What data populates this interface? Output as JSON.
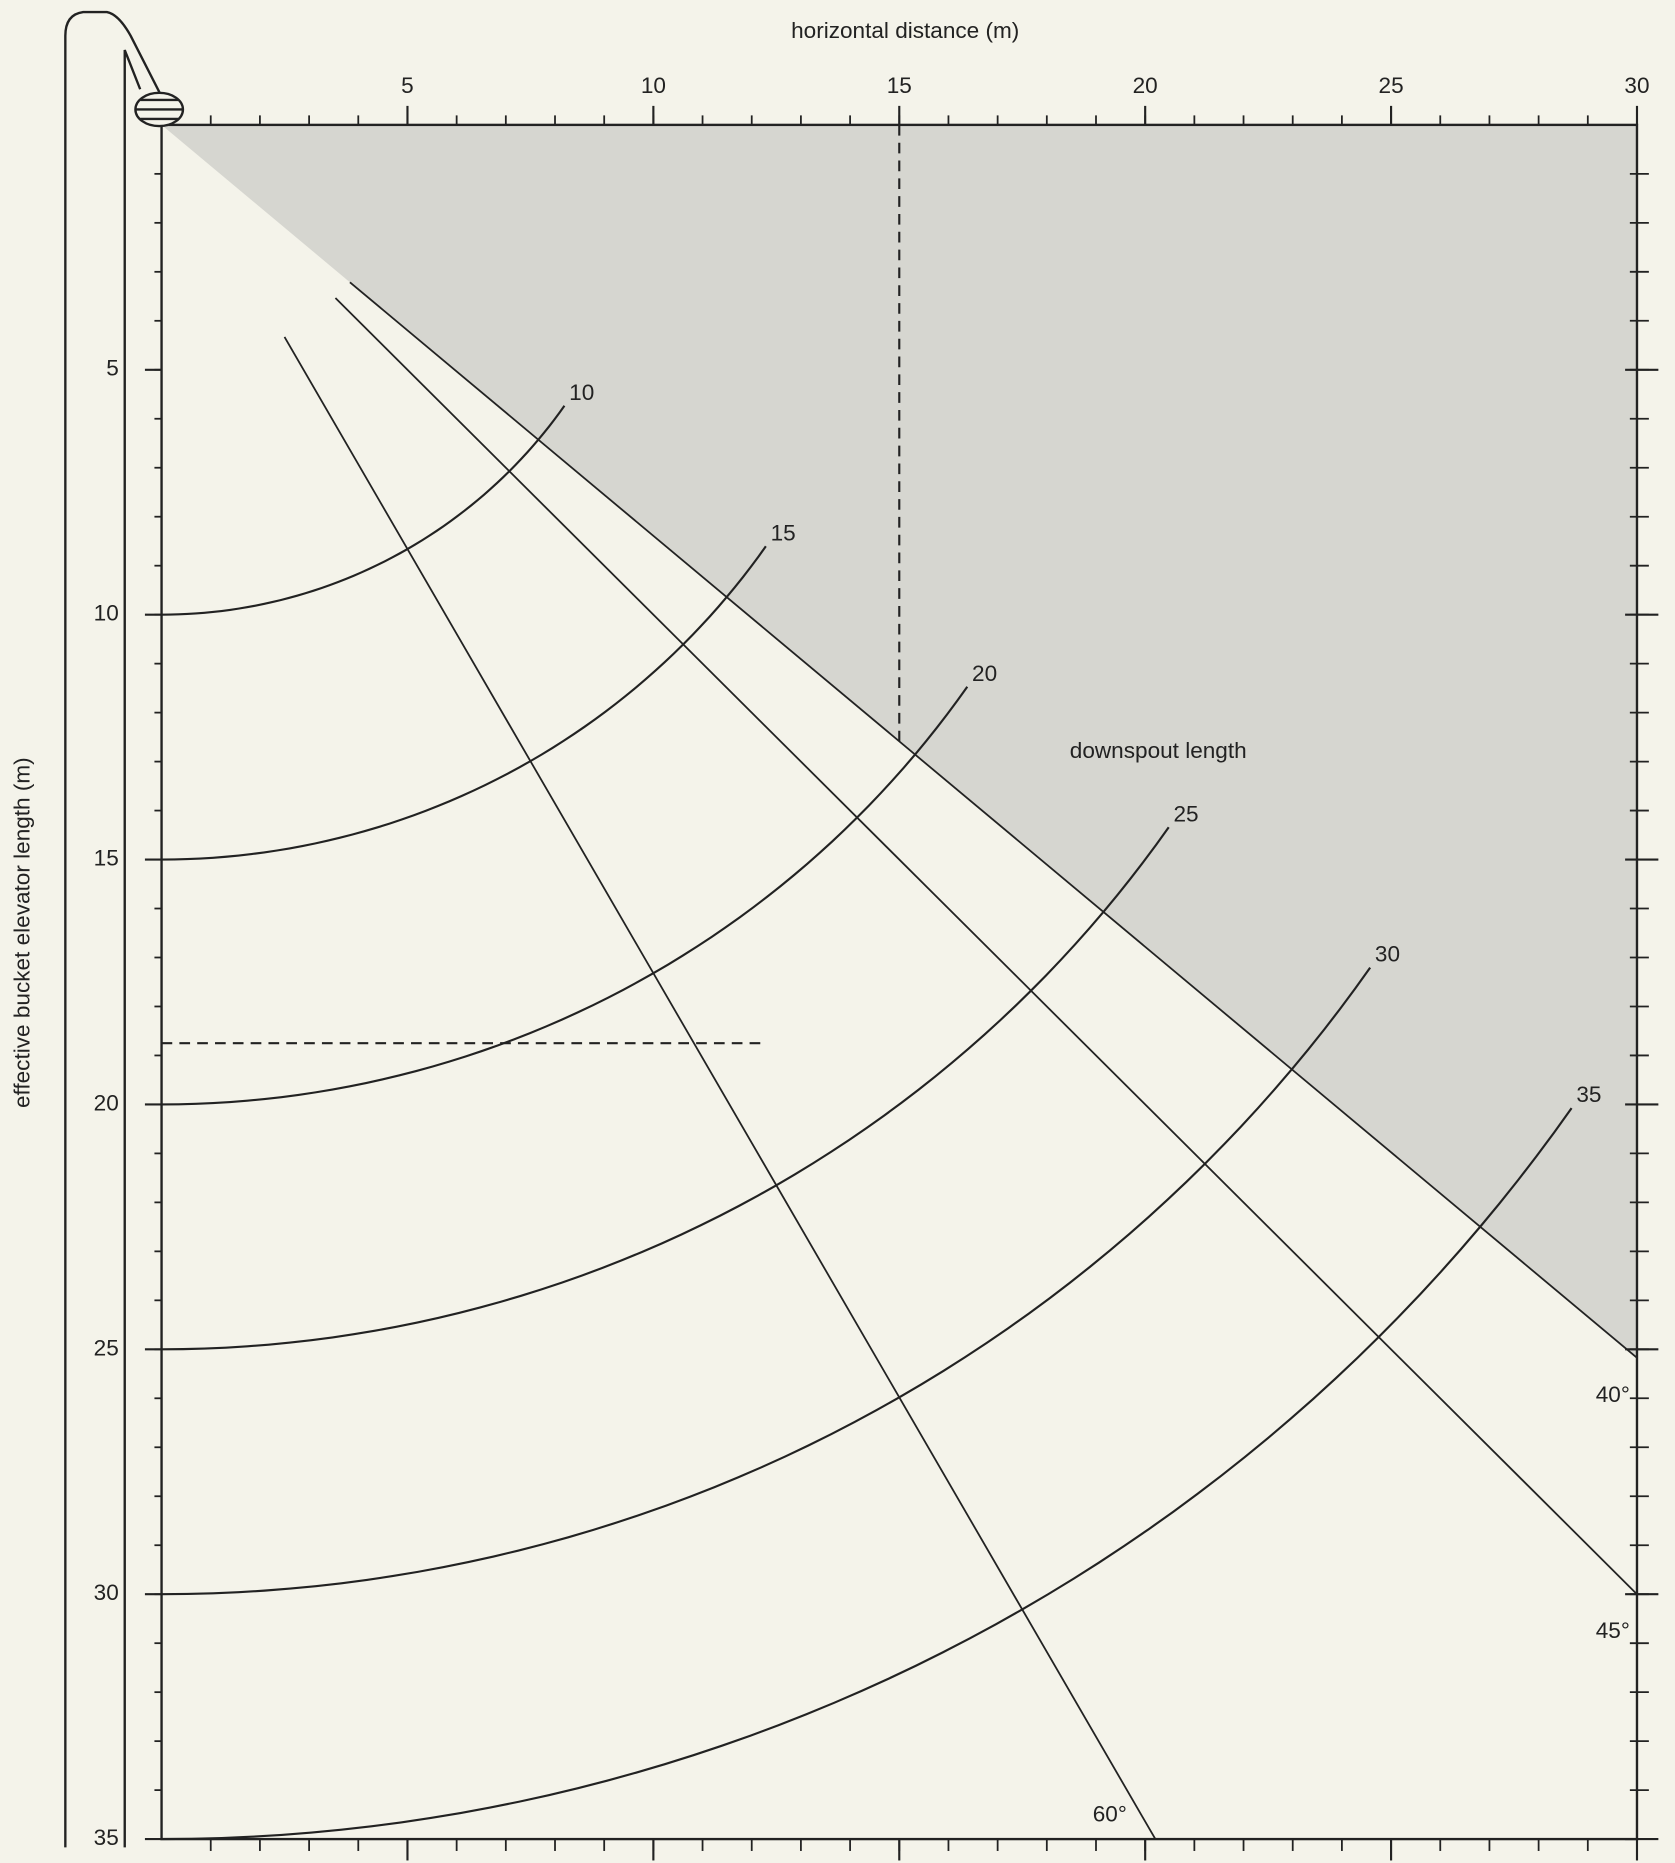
{
  "chart_data": {
    "type": "nomograph",
    "xlabel": "horizontal distance (m)",
    "ylabel": "effective bucket elevator length (m)",
    "annotation": "downspout length",
    "xlim": [
      0,
      30
    ],
    "ylim": [
      0,
      35
    ],
    "xticks": [
      5,
      10,
      15,
      20,
      25,
      30
    ],
    "yticks": [
      5,
      10,
      15,
      20,
      25,
      30,
      35
    ],
    "xminorticks": [
      1,
      2,
      3,
      4,
      5,
      6,
      7,
      8,
      9,
      10,
      11,
      12,
      13,
      14,
      15,
      16,
      17,
      18,
      19,
      20,
      21,
      22,
      23,
      24,
      25,
      26,
      27,
      28,
      29
    ],
    "yminorticks": [
      1,
      2,
      3,
      4,
      5,
      6,
      7,
      8,
      9,
      10,
      11,
      12,
      13,
      14,
      15,
      16,
      17,
      18,
      19,
      20,
      21,
      22,
      23,
      24,
      25,
      26,
      27,
      28,
      29,
      30,
      31,
      32,
      33,
      34
    ],
    "downspout_lengths": [
      10,
      15,
      20,
      25,
      30,
      35
    ],
    "arc_end_angle": 35,
    "angles": [
      {
        "value": 40,
        "label": "40°"
      },
      {
        "value": 45,
        "label": "45°"
      },
      {
        "value": 60,
        "label": "60°"
      }
    ],
    "angle_line_start": 5,
    "shaded_above_angle": 40,
    "example": {
      "horizontal_distance": 15,
      "elevator_length": 18.75,
      "horizontal_end": 12.3
    }
  }
}
